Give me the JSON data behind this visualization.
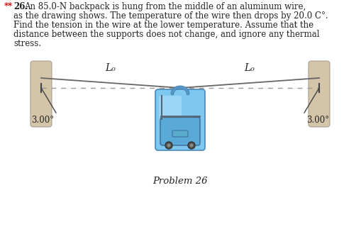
{
  "background_color": "#ffffff",
  "text_color": "#222222",
  "red_star_color": "#cc0000",
  "wall_color": "#d4c4a8",
  "wall_edge_color": "#aaa090",
  "wire_color": "#666666",
  "dashed_color": "#999999",
  "tick_color": "#444444",
  "angle_line_color": "#444444",
  "bag_light": "#7ec8f0",
  "bag_mid": "#5aaad8",
  "bag_dark": "#4888b8",
  "bag_darker": "#3a6a98",
  "bag_handle": "#5898c8",
  "bag_zipper": "#556677",
  "bag_tag": "#5aaccc",
  "bag_wheel": "#333333",
  "problem_label": "Problem 26",
  "angle_label": "3.00°",
  "Lo_label": "L₀",
  "title_line1": "**26.  An 85.0-N backpack is hung from the middle of an aluminum wire,",
  "title_line2": "as the drawing shows. The temperature of the wire then drops by 20.0 C°.",
  "title_line3": "Find the tension in the wire at the lower temperature. Assume that the",
  "title_line4": "distance between the supports does not change, and ignore any thermal",
  "title_line5": "stress.",
  "fig_width": 5.09,
  "fig_height": 3.3,
  "dpi": 100
}
